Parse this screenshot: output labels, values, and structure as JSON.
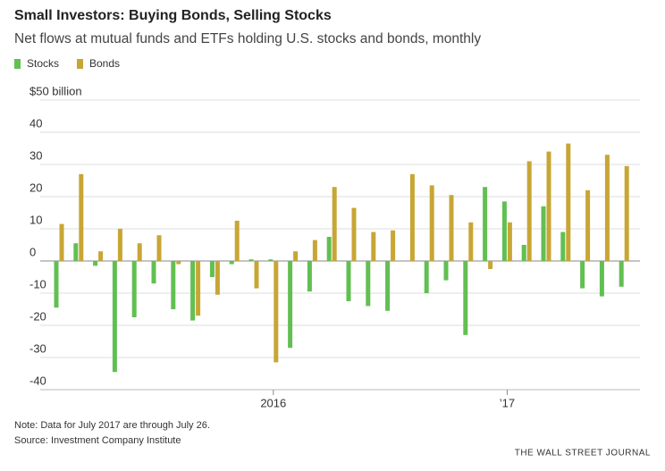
{
  "chart_data": {
    "type": "bar",
    "title": "Small Investors: Buying Bonds, Selling Stocks",
    "subtitle": "Net flows at mutual funds and ETFs holding U.S. stocks and bonds, monthly",
    "categories": [
      null,
      null,
      null,
      null,
      null,
      null,
      null,
      null,
      null,
      null,
      null,
      "2016",
      null,
      null,
      null,
      null,
      null,
      null,
      null,
      null,
      null,
      null,
      null,
      "’17",
      null,
      null,
      null,
      null,
      null,
      null
    ],
    "series": [
      {
        "name": "Stocks",
        "color": "#62bf52",
        "values": [
          -14.5,
          5.5,
          -1.5,
          -34.5,
          -17.5,
          -7,
          -15,
          -18.5,
          -5,
          -1,
          0.5,
          0.5,
          -27,
          -9.5,
          7.5,
          -12.5,
          -14,
          -15.5,
          0,
          -10,
          -6,
          -23,
          23,
          18.5,
          5,
          17,
          9,
          -8.5,
          -11,
          -8
        ]
      },
      {
        "name": "Bonds",
        "color": "#c8a635",
        "values": [
          11.5,
          27,
          3,
          10,
          5.5,
          8,
          -1,
          -17,
          -10.5,
          12.5,
          -8.5,
          -31.5,
          3,
          6.5,
          23,
          16.5,
          9,
          9.5,
          27,
          23.5,
          20.5,
          12,
          -2.5,
          12,
          31,
          34,
          36.5,
          22,
          33,
          29.5
        ]
      }
    ],
    "ylim": [
      -40,
      50
    ],
    "yticks": [
      -40,
      -30,
      -20,
      -10,
      0,
      10,
      20,
      30,
      40,
      {
        "value": 50,
        "label": "$50 billion"
      }
    ],
    "grid": true,
    "notes": [
      "Note: Data for July 2017 are through July 26.",
      "Source: Investment Company Institute"
    ],
    "credit": "THE WALL STREET JOURNAL"
  }
}
